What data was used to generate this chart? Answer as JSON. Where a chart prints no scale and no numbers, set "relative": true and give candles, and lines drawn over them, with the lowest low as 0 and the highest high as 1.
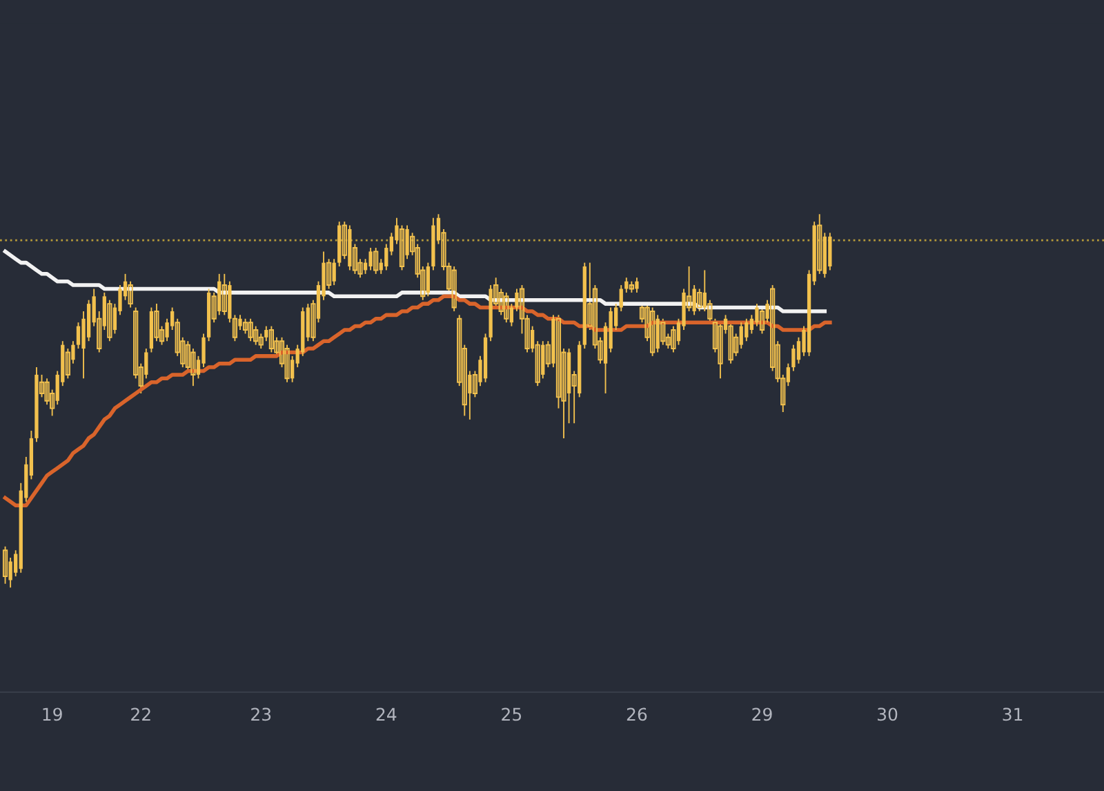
{
  "chart_data": {
    "type": "candlestick",
    "relative": true,
    "color": "#f2c14e",
    "categories": [
      null,
      null,
      null,
      null,
      null,
      null,
      null,
      null,
      null,
      "19",
      null,
      null,
      null,
      null,
      null,
      null,
      null,
      null,
      null,
      null,
      null,
      null,
      null,
      null,
      null,
      null,
      "22",
      null,
      null,
      null,
      null,
      null,
      null,
      null,
      null,
      null,
      null,
      null,
      null,
      null,
      null,
      null,
      null,
      null,
      null,
      null,
      null,
      null,
      null,
      "23",
      null,
      null,
      null,
      null,
      null,
      null,
      null,
      null,
      null,
      null,
      null,
      null,
      null,
      null,
      null,
      null,
      null,
      null,
      null,
      null,
      null,
      null,
      null,
      "24",
      null,
      null,
      null,
      null,
      null,
      null,
      null,
      null,
      null,
      null,
      null,
      null,
      null,
      null,
      null,
      null,
      null,
      null,
      null,
      null,
      null,
      null,
      null,
      "25",
      null,
      null,
      null,
      null,
      null,
      null,
      null,
      null,
      null,
      null,
      null,
      null,
      null,
      null,
      null,
      null,
      null,
      null,
      null,
      null,
      null,
      null,
      null,
      "26",
      null,
      null,
      null,
      null,
      null,
      null,
      null,
      null,
      null,
      null,
      null,
      null,
      null,
      null,
      null,
      null,
      null,
      null,
      null,
      null,
      null,
      null,
      null,
      "29",
      null,
      null,
      null,
      null,
      null,
      null,
      null,
      null,
      null,
      null,
      null,
      null,
      null,
      null,
      null,
      null,
      null,
      null,
      null,
      null,
      null,
      null,
      null,
      "30",
      null,
      null,
      null,
      null,
      null,
      null,
      null,
      null,
      null,
      null,
      null,
      null,
      null,
      null,
      null,
      null,
      null,
      null,
      null,
      null,
      null,
      null,
      null,
      "31",
      null,
      null,
      null,
      null,
      null,
      null,
      null,
      null,
      null,
      null,
      null,
      null,
      null,
      null,
      null,
      null,
      null
    ],
    "ohlc": [
      [
        0.1,
        0.11,
        0.01,
        0.03
      ],
      [
        0.02,
        0.08,
        0.0,
        0.07
      ],
      [
        0.04,
        0.1,
        0.03,
        0.09
      ],
      [
        0.05,
        0.28,
        0.04,
        0.26
      ],
      [
        0.24,
        0.35,
        0.23,
        0.33
      ],
      [
        0.3,
        0.42,
        0.29,
        0.4
      ],
      [
        0.4,
        0.59,
        0.39,
        0.57
      ],
      [
        0.55,
        0.57,
        0.51,
        0.52
      ],
      [
        0.55,
        0.56,
        0.49,
        0.5
      ],
      [
        0.52,
        0.53,
        0.46,
        0.48
      ],
      [
        0.5,
        0.58,
        0.49,
        0.57
      ],
      [
        0.55,
        0.66,
        0.54,
        0.65
      ],
      [
        0.63,
        0.64,
        0.56,
        0.57
      ],
      [
        0.61,
        0.66,
        0.6,
        0.65
      ],
      [
        0.65,
        0.71,
        0.64,
        0.7
      ],
      [
        0.64,
        0.74,
        0.56,
        0.72
      ],
      [
        0.67,
        0.77,
        0.66,
        0.76
      ],
      [
        0.71,
        0.8,
        0.7,
        0.78
      ],
      [
        0.72,
        0.74,
        0.63,
        0.64
      ],
      [
        0.7,
        0.79,
        0.69,
        0.78
      ],
      [
        0.76,
        0.77,
        0.66,
        0.67
      ],
      [
        0.69,
        0.76,
        0.68,
        0.75
      ],
      [
        0.74,
        0.81,
        0.73,
        0.8
      ],
      [
        0.78,
        0.84,
        0.77,
        0.82
      ],
      [
        0.81,
        0.82,
        0.75,
        0.76
      ],
      [
        0.74,
        0.75,
        0.56,
        0.57
      ],
      [
        0.59,
        0.6,
        0.52,
        0.54
      ],
      [
        0.57,
        0.64,
        0.56,
        0.63
      ],
      [
        0.64,
        0.75,
        0.63,
        0.74
      ],
      [
        0.74,
        0.76,
        0.66,
        0.67
      ],
      [
        0.69,
        0.7,
        0.65,
        0.66
      ],
      [
        0.67,
        0.72,
        0.66,
        0.71
      ],
      [
        0.7,
        0.75,
        0.69,
        0.74
      ],
      [
        0.71,
        0.72,
        0.62,
        0.63
      ],
      [
        0.66,
        0.67,
        0.59,
        0.6
      ],
      [
        0.65,
        0.66,
        0.58,
        0.59
      ],
      [
        0.63,
        0.64,
        0.54,
        0.57
      ],
      [
        0.57,
        0.62,
        0.56,
        0.61
      ],
      [
        0.6,
        0.68,
        0.59,
        0.67
      ],
      [
        0.67,
        0.8,
        0.66,
        0.79
      ],
      [
        0.78,
        0.79,
        0.71,
        0.72
      ],
      [
        0.74,
        0.84,
        0.73,
        0.82
      ],
      [
        0.81,
        0.84,
        0.73,
        0.74
      ],
      [
        0.72,
        0.82,
        0.71,
        0.81
      ],
      [
        0.72,
        0.73,
        0.66,
        0.67
      ],
      [
        0.7,
        0.73,
        0.69,
        0.72
      ],
      [
        0.71,
        0.72,
        0.68,
        0.69
      ],
      [
        0.71,
        0.72,
        0.66,
        0.67
      ],
      [
        0.69,
        0.7,
        0.65,
        0.66
      ],
      [
        0.67,
        0.68,
        0.64,
        0.65
      ],
      [
        0.67,
        0.7,
        0.66,
        0.69
      ],
      [
        0.69,
        0.7,
        0.63,
        0.64
      ],
      [
        0.66,
        0.67,
        0.62,
        0.63
      ],
      [
        0.66,
        0.67,
        0.59,
        0.6
      ],
      [
        0.64,
        0.65,
        0.55,
        0.56
      ],
      [
        0.56,
        0.62,
        0.55,
        0.61
      ],
      [
        0.6,
        0.65,
        0.59,
        0.64
      ],
      [
        0.63,
        0.75,
        0.62,
        0.74
      ],
      [
        0.67,
        0.76,
        0.66,
        0.75
      ],
      [
        0.76,
        0.77,
        0.66,
        0.67
      ],
      [
        0.72,
        0.82,
        0.71,
        0.81
      ],
      [
        0.78,
        0.9,
        0.77,
        0.87
      ],
      [
        0.87,
        0.88,
        0.8,
        0.81
      ],
      [
        0.82,
        0.88,
        0.81,
        0.87
      ],
      [
        0.87,
        0.98,
        0.86,
        0.97
      ],
      [
        0.97,
        0.98,
        0.88,
        0.89
      ],
      [
        0.86,
        0.97,
        0.85,
        0.96
      ],
      [
        0.91,
        0.92,
        0.84,
        0.85
      ],
      [
        0.87,
        0.88,
        0.83,
        0.84
      ],
      [
        0.85,
        0.88,
        0.84,
        0.87
      ],
      [
        0.86,
        0.91,
        0.85,
        0.9
      ],
      [
        0.9,
        0.91,
        0.84,
        0.85
      ],
      [
        0.85,
        0.88,
        0.84,
        0.87
      ],
      [
        0.86,
        0.92,
        0.85,
        0.91
      ],
      [
        0.9,
        0.95,
        0.89,
        0.94
      ],
      [
        0.93,
        0.99,
        0.92,
        0.97
      ],
      [
        0.96,
        0.97,
        0.85,
        0.86
      ],
      [
        0.89,
        0.97,
        0.88,
        0.96
      ],
      [
        0.94,
        0.95,
        0.89,
        0.9
      ],
      [
        0.91,
        0.92,
        0.83,
        0.84
      ],
      [
        0.85,
        0.86,
        0.77,
        0.78
      ],
      [
        0.79,
        0.87,
        0.78,
        0.86
      ],
      [
        0.86,
        0.99,
        0.85,
        0.97
      ],
      [
        0.93,
        1.0,
        0.92,
        0.99
      ],
      [
        0.95,
        0.96,
        0.85,
        0.86
      ],
      [
        0.86,
        0.87,
        0.79,
        0.8
      ],
      [
        0.85,
        0.86,
        0.74,
        0.75
      ],
      [
        0.72,
        0.73,
        0.54,
        0.55
      ],
      [
        0.64,
        0.65,
        0.46,
        0.49
      ],
      [
        0.52,
        0.58,
        0.45,
        0.57
      ],
      [
        0.57,
        0.58,
        0.51,
        0.52
      ],
      [
        0.55,
        0.62,
        0.54,
        0.61
      ],
      [
        0.56,
        0.68,
        0.55,
        0.67
      ],
      [
        0.67,
        0.81,
        0.66,
        0.8
      ],
      [
        0.81,
        0.83,
        0.75,
        0.76
      ],
      [
        0.79,
        0.8,
        0.73,
        0.74
      ],
      [
        0.78,
        0.79,
        0.71,
        0.72
      ],
      [
        0.71,
        0.76,
        0.7,
        0.75
      ],
      [
        0.75,
        0.8,
        0.74,
        0.79
      ],
      [
        0.8,
        0.81,
        0.68,
        0.72
      ],
      [
        0.72,
        0.73,
        0.63,
        0.64
      ],
      [
        0.64,
        0.7,
        0.63,
        0.69
      ],
      [
        0.65,
        0.66,
        0.54,
        0.55
      ],
      [
        0.57,
        0.66,
        0.56,
        0.65
      ],
      [
        0.65,
        0.66,
        0.59,
        0.6
      ],
      [
        0.6,
        0.73,
        0.59,
        0.72
      ],
      [
        0.72,
        0.73,
        0.48,
        0.51
      ],
      [
        0.63,
        0.64,
        0.4,
        0.5
      ],
      [
        0.52,
        0.64,
        0.44,
        0.63
      ],
      [
        0.57,
        0.58,
        0.44,
        0.54
      ],
      [
        0.52,
        0.66,
        0.51,
        0.65
      ],
      [
        0.65,
        0.87,
        0.64,
        0.86
      ],
      [
        0.76,
        0.87,
        0.69,
        0.7
      ],
      [
        0.8,
        0.81,
        0.64,
        0.65
      ],
      [
        0.66,
        0.67,
        0.6,
        0.61
      ],
      [
        0.6,
        0.71,
        0.52,
        0.7
      ],
      [
        0.64,
        0.75,
        0.63,
        0.74
      ],
      [
        0.7,
        0.76,
        0.69,
        0.75
      ],
      [
        0.75,
        0.81,
        0.74,
        0.8
      ],
      [
        0.8,
        0.83,
        0.79,
        0.82
      ],
      [
        0.81,
        0.82,
        0.79,
        0.8
      ],
      [
        0.8,
        0.83,
        0.79,
        0.82
      ],
      [
        0.75,
        0.76,
        0.71,
        0.72
      ],
      [
        0.75,
        0.76,
        0.66,
        0.67
      ],
      [
        0.74,
        0.75,
        0.62,
        0.63
      ],
      [
        0.64,
        0.73,
        0.63,
        0.72
      ],
      [
        0.71,
        0.72,
        0.65,
        0.66
      ],
      [
        0.67,
        0.68,
        0.64,
        0.65
      ],
      [
        0.69,
        0.7,
        0.63,
        0.64
      ],
      [
        0.66,
        0.72,
        0.65,
        0.71
      ],
      [
        0.7,
        0.8,
        0.69,
        0.79
      ],
      [
        0.78,
        0.86,
        0.74,
        0.75
      ],
      [
        0.74,
        0.81,
        0.73,
        0.8
      ],
      [
        0.79,
        0.8,
        0.74,
        0.75
      ],
      [
        0.75,
        0.85,
        0.74,
        0.79
      ],
      [
        0.76,
        0.77,
        0.71,
        0.72
      ],
      [
        0.71,
        0.72,
        0.63,
        0.64
      ],
      [
        0.7,
        0.71,
        0.56,
        0.6
      ],
      [
        0.69,
        0.73,
        0.68,
        0.72
      ],
      [
        0.7,
        0.71,
        0.6,
        0.61
      ],
      [
        0.67,
        0.68,
        0.62,
        0.63
      ],
      [
        0.65,
        0.71,
        0.64,
        0.7
      ],
      [
        0.67,
        0.72,
        0.66,
        0.71
      ],
      [
        0.69,
        0.73,
        0.68,
        0.72
      ],
      [
        0.71,
        0.76,
        0.7,
        0.75
      ],
      [
        0.74,
        0.75,
        0.68,
        0.69
      ],
      [
        0.72,
        0.77,
        0.71,
        0.76
      ],
      [
        0.8,
        0.81,
        0.58,
        0.59
      ],
      [
        0.65,
        0.66,
        0.55,
        0.56
      ],
      [
        0.56,
        0.57,
        0.47,
        0.49
      ],
      [
        0.55,
        0.6,
        0.54,
        0.59
      ],
      [
        0.59,
        0.65,
        0.58,
        0.64
      ],
      [
        0.61,
        0.67,
        0.6,
        0.66
      ],
      [
        0.63,
        0.7,
        0.62,
        0.69
      ],
      [
        0.63,
        0.85,
        0.62,
        0.84
      ],
      [
        0.82,
        0.98,
        0.81,
        0.97
      ],
      [
        0.97,
        1.0,
        0.84,
        0.85
      ],
      [
        0.84,
        0.95,
        0.83,
        0.94
      ],
      [
        0.86,
        0.95,
        0.85,
        0.94
      ],
      null,
      null,
      null,
      null,
      null,
      null,
      null,
      null,
      null,
      null,
      null,
      null,
      null,
      null,
      null,
      null,
      null,
      null,
      null,
      null,
      null,
      null,
      null,
      null,
      null,
      null,
      null,
      null,
      null,
      null,
      null,
      null,
      null,
      null,
      null,
      null,
      null,
      null,
      null,
      null,
      null,
      null,
      null,
      null,
      null,
      null,
      null,
      null,
      null,
      null,
      null,
      null
    ],
    "series": [
      {
        "type": "line",
        "color": "#f2f2f2",
        "values": [
          0.9,
          0.89,
          0.88,
          0.87,
          0.87,
          0.86,
          0.85,
          0.84,
          0.84,
          0.83,
          0.82,
          0.82,
          0.82,
          0.81,
          0.81,
          0.81,
          0.81,
          0.81,
          0.81,
          0.8,
          0.8,
          0.8,
          0.8,
          0.8,
          0.8,
          0.8,
          0.8,
          0.8,
          0.8,
          0.8,
          0.8,
          0.8,
          0.8,
          0.8,
          0.8,
          0.8,
          0.8,
          0.8,
          0.8,
          0.8,
          0.8,
          0.79,
          0.79,
          0.79,
          0.79,
          0.79,
          0.79,
          0.79,
          0.79,
          0.79,
          0.79,
          0.79,
          0.79,
          0.79,
          0.79,
          0.79,
          0.79,
          0.79,
          0.79,
          0.79,
          0.79,
          0.79,
          0.79,
          0.78,
          0.78,
          0.78,
          0.78,
          0.78,
          0.78,
          0.78,
          0.78,
          0.78,
          0.78,
          0.78,
          0.78,
          0.78,
          0.79,
          0.79,
          0.79,
          0.79,
          0.79,
          0.79,
          0.79,
          0.79,
          0.79,
          0.79,
          0.79,
          0.78,
          0.78,
          0.78,
          0.78,
          0.78,
          0.78,
          0.77,
          0.77,
          0.77,
          0.77,
          0.77,
          0.77,
          0.77,
          0.77,
          0.77,
          0.77,
          0.77,
          0.77,
          0.77,
          0.77,
          0.77,
          0.77,
          0.77,
          0.77,
          0.77,
          0.77,
          0.77,
          0.77,
          0.76,
          0.76,
          0.76,
          0.76,
          0.76,
          0.76,
          0.76,
          0.76,
          0.76,
          0.76,
          0.76,
          0.76,
          0.76,
          0.76,
          0.76,
          0.76,
          0.76,
          0.76,
          0.75,
          0.75,
          0.75,
          0.75,
          0.75,
          0.75,
          0.75,
          0.75,
          0.75,
          0.75,
          0.75,
          0.75,
          0.75,
          0.75,
          0.75,
          0.75,
          0.74,
          0.74,
          0.74,
          0.74,
          0.74,
          0.74,
          0.74,
          0.74,
          0.74,
          null,
          null,
          null,
          null,
          null,
          null,
          null,
          null,
          null,
          null,
          null,
          null,
          null,
          null,
          null,
          null,
          null,
          null,
          null,
          null,
          null,
          null,
          null,
          null,
          null,
          null,
          null,
          null,
          null,
          null,
          null,
          null,
          null,
          null,
          null,
          null,
          null,
          null,
          null,
          null,
          null,
          null,
          null,
          null,
          null,
          null,
          null,
          null,
          null,
          null,
          null,
          null,
          null
        ]
      },
      {
        "type": "line",
        "color": "#d9642b",
        "values": [
          0.24,
          0.23,
          0.22,
          0.22,
          0.22,
          0.24,
          0.26,
          0.28,
          0.3,
          0.31,
          0.32,
          0.33,
          0.34,
          0.36,
          0.37,
          0.38,
          0.4,
          0.41,
          0.43,
          0.45,
          0.46,
          0.48,
          0.49,
          0.5,
          0.51,
          0.52,
          0.53,
          0.54,
          0.55,
          0.55,
          0.56,
          0.56,
          0.57,
          0.57,
          0.57,
          0.58,
          0.58,
          0.58,
          0.58,
          0.59,
          0.59,
          0.6,
          0.6,
          0.6,
          0.61,
          0.61,
          0.61,
          0.61,
          0.62,
          0.62,
          0.62,
          0.62,
          0.62,
          0.63,
          0.63,
          0.63,
          0.63,
          0.63,
          0.64,
          0.64,
          0.65,
          0.66,
          0.66,
          0.67,
          0.68,
          0.69,
          0.69,
          0.7,
          0.7,
          0.71,
          0.71,
          0.72,
          0.72,
          0.73,
          0.73,
          0.73,
          0.74,
          0.74,
          0.75,
          0.75,
          0.76,
          0.76,
          0.77,
          0.77,
          0.78,
          0.78,
          0.78,
          0.77,
          0.77,
          0.76,
          0.76,
          0.75,
          0.75,
          0.75,
          0.75,
          0.75,
          0.75,
          0.75,
          0.75,
          0.75,
          0.74,
          0.74,
          0.73,
          0.73,
          0.72,
          0.72,
          0.72,
          0.71,
          0.71,
          0.71,
          0.7,
          0.7,
          0.7,
          0.69,
          0.69,
          0.69,
          0.69,
          0.69,
          0.69,
          0.7,
          0.7,
          0.7,
          0.7,
          0.7,
          0.71,
          0.71,
          0.71,
          0.71,
          0.71,
          0.71,
          0.71,
          0.71,
          0.71,
          0.71,
          0.71,
          0.71,
          0.71,
          0.71,
          0.71,
          0.71,
          0.71,
          0.71,
          0.71,
          0.71,
          0.71,
          0.71,
          0.71,
          0.7,
          0.7,
          0.69,
          0.69,
          0.69,
          0.69,
          0.69,
          0.69,
          0.7,
          0.7,
          0.71,
          0.71,
          null,
          null,
          null,
          null,
          null,
          null,
          null,
          null,
          null,
          null,
          null,
          null,
          null,
          null,
          null,
          null,
          null,
          null,
          null,
          null,
          null,
          null,
          null,
          null,
          null,
          null,
          null,
          null,
          null,
          null,
          null,
          null,
          null,
          null,
          null,
          null,
          null,
          null,
          null,
          null,
          null,
          null,
          null,
          null,
          null,
          null,
          null,
          null,
          null,
          null,
          null,
          null
        ]
      }
    ],
    "ref_lines": [
      {
        "axis": "y",
        "value": 0.93,
        "color": "#b59a3a",
        "line_style": "dotted"
      }
    ],
    "grid": false,
    "legend": false
  }
}
